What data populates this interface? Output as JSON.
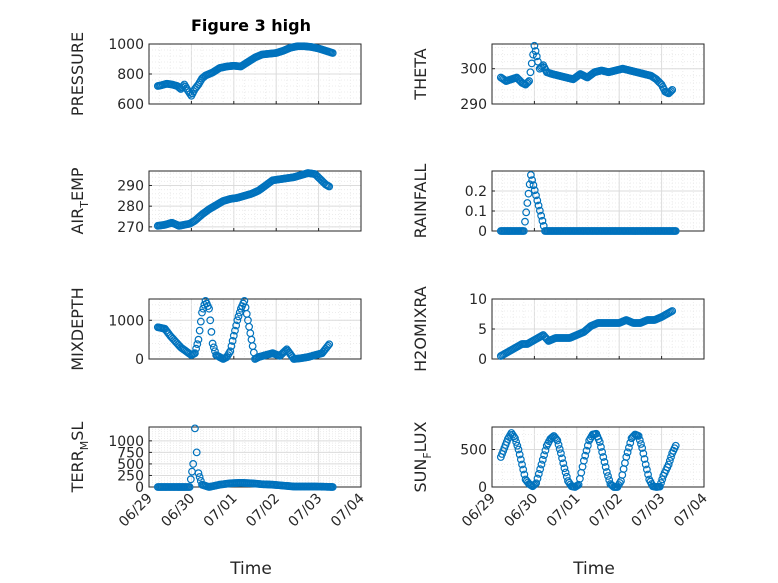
{
  "figure": {
    "title": "Figure 3 high",
    "xlabel": "Time",
    "xticklabels": [
      "06/29",
      "06/30",
      "07/01",
      "07/02",
      "07/03",
      "07/04"
    ],
    "x_range_days": [
      0,
      5
    ],
    "marker": "circle",
    "marker_color": "#0072BD",
    "grid": true
  },
  "chart_data": [
    {
      "type": "scatter",
      "ylabel": "PRESSURE",
      "ylim": [
        600,
        1000
      ],
      "yticks": [
        600,
        800,
        1000
      ],
      "series": [
        {
          "x": [
            "06/29 05:00",
            "06/29 07:00",
            "06/29 10:00",
            "06/29 13:00",
            "06/29 16:00",
            "06/29 18:00",
            "06/29 20:00",
            "06/29 22:00",
            "06/30 00:00",
            "06/30 02:00",
            "06/30 04:00",
            "06/30 06:00",
            "06/30 08:00",
            "06/30 12:00",
            "06/30 16:00",
            "06/30 20:00",
            "07/01 00:00",
            "07/01 04:00",
            "07/01 08:00",
            "07/01 12:00",
            "07/01 16:00",
            "07/01 20:00",
            "07/02 00:00",
            "07/02 04:00",
            "07/02 08:00",
            "07/02 12:00",
            "07/02 16:00",
            "07/02 20:00",
            "07/03 00:00",
            "07/03 04:00",
            "07/03 08:00"
          ],
          "y": [
            720,
            725,
            735,
            730,
            720,
            700,
            730,
            690,
            655,
            700,
            730,
            770,
            790,
            810,
            840,
            850,
            855,
            850,
            880,
            910,
            930,
            935,
            940,
            955,
            975,
            985,
            985,
            980,
            970,
            955,
            940
          ]
        }
      ]
    },
    {
      "type": "scatter",
      "ylabel": "THETA",
      "ylim": [
        290,
        307
      ],
      "yticks": [
        290,
        300
      ],
      "series": [
        {
          "x": [
            "06/29 05:00",
            "06/29 08:00",
            "06/29 11:00",
            "06/29 14:00",
            "06/29 17:00",
            "06/29 19:00",
            "06/29 21:00",
            "06/30 00:00",
            "06/30 02:00",
            "06/30 03:00",
            "06/30 05:00",
            "06/30 07:00",
            "06/30 10:00",
            "06/30 14:00",
            "06/30 18:00",
            "06/30 22:00",
            "07/01 02:00",
            "07/01 06:00",
            "07/01 10:00",
            "07/01 14:00",
            "07/01 18:00",
            "07/01 22:00",
            "07/02 02:00",
            "07/02 06:00",
            "07/02 10:00",
            "07/02 14:00",
            "07/02 18:00",
            "07/02 21:00",
            "07/03 00:00",
            "07/03 02:00",
            "07/03 04:00",
            "07/03 06:00"
          ],
          "y": [
            297.5,
            296.5,
            297,
            297.5,
            296,
            295.5,
            296.5,
            306.5,
            302,
            300,
            301,
            299,
            298.5,
            298,
            297.5,
            297,
            298.5,
            297.5,
            299,
            299.5,
            299,
            299.5,
            300,
            299.5,
            299,
            298.5,
            298,
            297,
            295.5,
            293.5,
            293,
            294
          ]
        }
      ]
    },
    {
      "type": "scatter",
      "ylabel": "AIR",
      "ylabel_sub": "T",
      "ylabel_tail": "EMP",
      "ylim": [
        268,
        297
      ],
      "yticks": [
        270,
        280,
        290
      ],
      "series": [
        {
          "x": [
            "06/29 05:00",
            "06/29 09:00",
            "06/29 13:00",
            "06/29 17:00",
            "06/29 20:00",
            "06/29 23:00",
            "06/30 02:00",
            "06/30 06:00",
            "06/30 10:00",
            "06/30 14:00",
            "06/30 18:00",
            "06/30 22:00",
            "07/01 02:00",
            "07/01 06:00",
            "07/01 10:00",
            "07/01 14:00",
            "07/01 18:00",
            "07/01 22:00",
            "07/02 02:00",
            "07/02 06:00",
            "07/02 10:00",
            "07/02 14:00",
            "07/02 18:00",
            "07/02 22:00",
            "07/03 01:00",
            "07/03 04:00",
            "07/03 06:00"
          ],
          "y": [
            270.5,
            271,
            272,
            270.5,
            271,
            271.5,
            273,
            276,
            278.5,
            280.5,
            282.5,
            283.5,
            284,
            285,
            286,
            287.5,
            290,
            292.5,
            293,
            293.5,
            294,
            295,
            296,
            295.5,
            293,
            290.5,
            289.5
          ]
        }
      ]
    },
    {
      "type": "scatter",
      "ylabel": "RAINFALL",
      "ylim": [
        0,
        0.3
      ],
      "yticks": [
        0,
        0.1,
        0.2
      ],
      "series": [
        {
          "x": [
            "06/29 05:00",
            "06/29 12:00",
            "06/29 18:00",
            "06/29 22:00",
            "06/30 06:00",
            "06/30 14:00",
            "06/30 22:00",
            "07/01 06:00",
            "07/01 14:00",
            "07/01 22:00",
            "07/02 06:00",
            "07/02 14:00",
            "07/02 22:00",
            "07/03 06:00",
            "07/03 08:00"
          ],
          "y": [
            0,
            0,
            0,
            0.28,
            0,
            0,
            0,
            0,
            0,
            0,
            0,
            0,
            0,
            0,
            0
          ]
        }
      ]
    },
    {
      "type": "scatter",
      "ylabel": "MIXDEPTH",
      "ylim": [
        0,
        1550
      ],
      "yticks": [
        0,
        1000
      ],
      "series": [
        {
          "x": [
            "06/29 05:00",
            "06/29 09:00",
            "06/29 12:00",
            "06/29 15:00",
            "06/29 18:00",
            "06/29 21:00",
            "06/30 00:00",
            "06/30 02:00",
            "06/30 04:00",
            "06/30 06:00",
            "06/30 08:00",
            "06/30 10:00",
            "06/30 12:00",
            "06/30 14:00",
            "06/30 16:00",
            "06/30 18:00",
            "06/30 20:00",
            "06/30 22:00",
            "07/01 00:00",
            "07/01 02:00",
            "07/01 04:00",
            "07/01 06:00",
            "07/01 08:00",
            "07/01 10:00",
            "07/01 12:00",
            "07/01 14:00",
            "07/01 18:00",
            "07/01 22:00",
            "07/02 02:00",
            "07/02 06:00",
            "07/02 10:00",
            "07/02 14:00",
            "07/02 18:00",
            "07/02 22:00",
            "07/03 02:00",
            "07/03 06:00"
          ],
          "y": [
            820,
            780,
            600,
            450,
            300,
            200,
            100,
            150,
            500,
            1200,
            1500,
            1300,
            400,
            100,
            50,
            0,
            50,
            200,
            600,
            1000,
            1300,
            1500,
            1000,
            500,
            0,
            50,
            100,
            150,
            80,
            250,
            0,
            20,
            50,
            100,
            150,
            380
          ]
        }
      ]
    },
    {
      "type": "scatter",
      "ylabel": "H2OMIXRA",
      "ylim": [
        0,
        10
      ],
      "yticks": [
        0,
        5,
        10
      ],
      "series": [
        {
          "x": [
            "06/29 05:00",
            "06/29 08:00",
            "06/29 11:00",
            "06/29 14:00",
            "06/29 17:00",
            "06/29 20:00",
            "06/29 23:00",
            "06/30 02:00",
            "06/30 05:00",
            "06/30 08:00",
            "06/30 12:00",
            "06/30 16:00",
            "06/30 20:00",
            "07/01 00:00",
            "07/01 04:00",
            "07/01 08:00",
            "07/01 12:00",
            "07/01 16:00",
            "07/01 20:00",
            "07/02 00:00",
            "07/02 04:00",
            "07/02 08:00",
            "07/02 12:00",
            "07/02 16:00",
            "07/02 20:00",
            "07/03 00:00",
            "07/03 03:00",
            "07/03 06:00"
          ],
          "y": [
            0.5,
            1,
            1.5,
            2,
            2.5,
            2.5,
            3,
            3.5,
            4,
            3,
            3.5,
            3.5,
            3.5,
            4,
            4.5,
            5.5,
            6,
            6,
            6,
            6,
            6.5,
            6,
            6,
            6.5,
            6.5,
            7,
            7.5,
            8
          ]
        }
      ]
    },
    {
      "type": "scatter",
      "ylabel": "TERR",
      "ylabel_sub": "M",
      "ylabel_tail": "SL",
      "ylim": [
        0,
        1300
      ],
      "yticks": [
        0,
        250,
        500,
        750,
        1000
      ],
      "series": [
        {
          "x": [
            "06/29 05:00",
            "06/29 10:00",
            "06/29 16:00",
            "06/29 20:00",
            "06/29 23:00",
            "06/30 01:00",
            "06/30 02:00",
            "06/30 03:00",
            "06/30 04:00",
            "06/30 06:00",
            "06/30 10:00",
            "06/30 16:00",
            "06/30 22:00",
            "07/01 04:00",
            "07/01 10:00",
            "07/01 16:00",
            "07/01 22:00",
            "07/02 04:00",
            "07/02 10:00",
            "07/02 16:00",
            "07/02 22:00",
            "07/03 04:00",
            "07/03 08:00"
          ],
          "y": [
            0,
            0,
            0,
            0,
            0,
            500,
            1270,
            750,
            300,
            50,
            0,
            50,
            80,
            90,
            80,
            60,
            50,
            30,
            10,
            10,
            10,
            5,
            0
          ]
        }
      ]
    },
    {
      "type": "scatter",
      "ylabel": "SUN",
      "ylabel_sub": "F",
      "ylabel_tail": "LUX",
      "ylim": [
        0,
        800
      ],
      "yticks": [
        0,
        500
      ],
      "series": [
        {
          "x": [
            "06/29 05:00",
            "06/29 07:00",
            "06/29 09:00",
            "06/29 11:00",
            "06/29 13:00",
            "06/29 15:00",
            "06/29 17:00",
            "06/29 19:00",
            "06/29 21:00",
            "06/29 23:00",
            "06/30 01:00",
            "06/30 04:00",
            "06/30 07:00",
            "06/30 09:00",
            "06/30 11:00",
            "06/30 13:00",
            "06/30 15:00",
            "06/30 17:00",
            "06/30 19:00",
            "06/30 21:00",
            "06/30 23:00",
            "07/01 01:00",
            "07/01 04:00",
            "07/01 07:00",
            "07/01 09:00",
            "07/01 11:00",
            "07/01 13:00",
            "07/01 15:00",
            "07/01 17:00",
            "07/01 19:00",
            "07/01 21:00",
            "07/01 23:00",
            "07/02 01:00",
            "07/02 04:00",
            "07/02 07:00",
            "07/02 09:00",
            "07/02 11:00",
            "07/02 13:00",
            "07/02 15:00",
            "07/02 17:00",
            "07/02 19:00",
            "07/02 21:00",
            "07/02 23:00",
            "07/03 01:00",
            "07/03 04:00",
            "07/03 06:00",
            "07/03 08:00"
          ],
          "y": [
            400,
            520,
            640,
            720,
            650,
            500,
            300,
            100,
            40,
            10,
            50,
            300,
            550,
            640,
            680,
            620,
            450,
            250,
            80,
            10,
            0,
            30,
            350,
            620,
            700,
            710,
            600,
            400,
            200,
            40,
            0,
            0,
            80,
            400,
            650,
            700,
            680,
            520,
            300,
            100,
            10,
            0,
            5,
            150,
            300,
            450,
            550
          ]
        }
      ]
    }
  ]
}
